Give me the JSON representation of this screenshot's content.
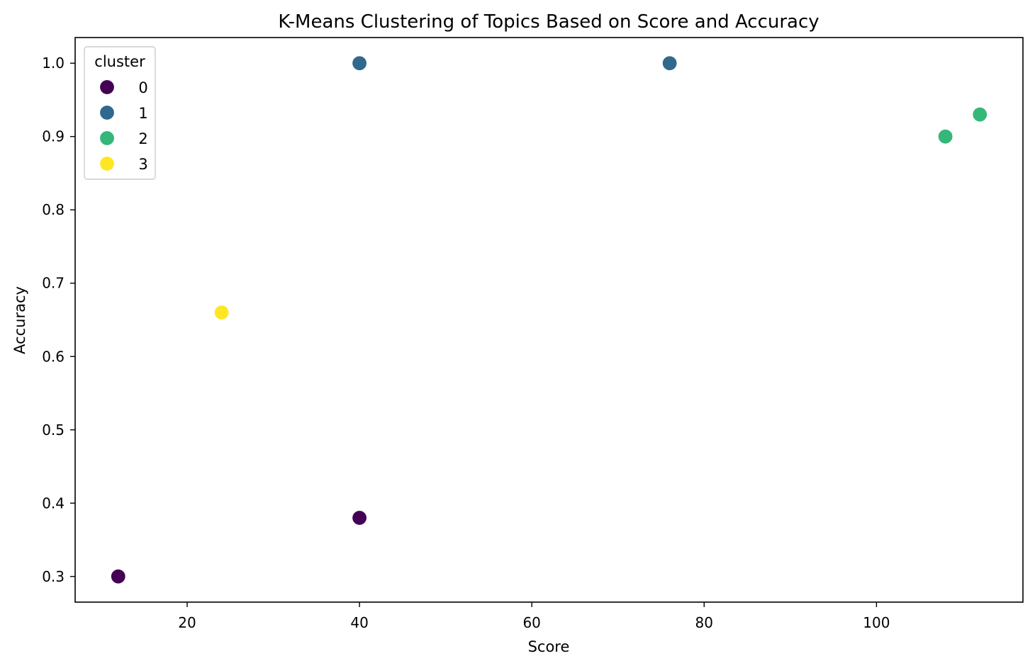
{
  "chart_data": {
    "type": "scatter",
    "title": "K-Means Clustering of Topics Based on Score and Accuracy",
    "xlabel": "Score",
    "ylabel": "Accuracy",
    "xlim": [
      7,
      117
    ],
    "ylim": [
      0.265,
      1.035
    ],
    "xticks": [
      20,
      40,
      60,
      80,
      100
    ],
    "yticks": [
      0.3,
      0.4,
      0.5,
      0.6,
      0.7,
      0.8,
      0.9,
      1.0
    ],
    "xtick_labels": [
      "20",
      "40",
      "60",
      "80",
      "100"
    ],
    "ytick_labels": [
      "0.3",
      "0.4",
      "0.5",
      "0.6",
      "0.7",
      "0.8",
      "0.9",
      "1.0"
    ],
    "grid": false,
    "legend": {
      "title": "cluster",
      "placement": "top-left",
      "entries": [
        {
          "label": "0",
          "color": "#440154"
        },
        {
          "label": "1",
          "color": "#31688e"
        },
        {
          "label": "2",
          "color": "#35b779"
        },
        {
          "label": "3",
          "color": "#fde725"
        }
      ]
    },
    "series": [
      {
        "name": "0",
        "color": "#440154",
        "points": [
          {
            "x": 12,
            "y": 0.3
          },
          {
            "x": 40,
            "y": 0.38
          }
        ]
      },
      {
        "name": "1",
        "color": "#31688e",
        "points": [
          {
            "x": 40,
            "y": 1.0
          },
          {
            "x": 76,
            "y": 1.0
          }
        ]
      },
      {
        "name": "2",
        "color": "#35b779",
        "points": [
          {
            "x": 108,
            "y": 0.9
          },
          {
            "x": 112,
            "y": 0.93
          }
        ]
      },
      {
        "name": "3",
        "color": "#fde725",
        "points": [
          {
            "x": 24,
            "y": 0.66
          }
        ]
      }
    ]
  }
}
